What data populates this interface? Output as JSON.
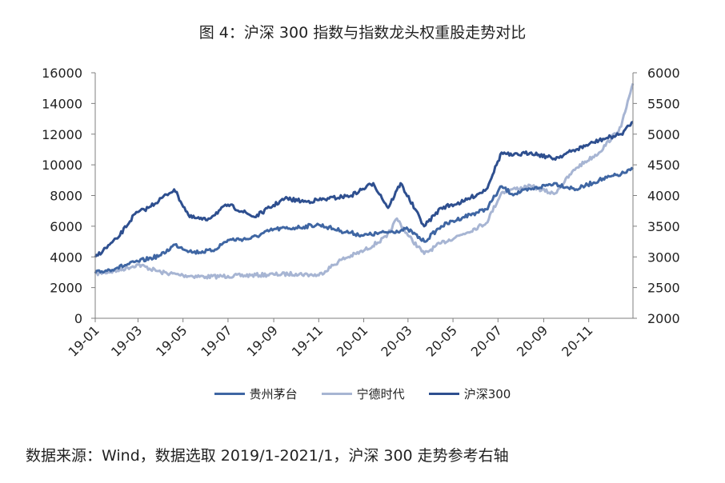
{
  "chart_data": {
    "type": "line",
    "title": "图 4：沪深 300 指数与指数龙头权重股走势对比",
    "left_axis": {
      "ylim": [
        0,
        16000
      ],
      "ticks": [
        "0",
        "2000",
        "4000",
        "6000",
        "8000",
        "10000",
        "12000",
        "14000",
        "16000"
      ]
    },
    "right_axis": {
      "ylim": [
        2000,
        6000
      ],
      "ticks": [
        "2000",
        "2500",
        "3000",
        "3500",
        "4000",
        "4500",
        "5000",
        "5500",
        "6000"
      ]
    },
    "x_ticks": [
      "19-01",
      "19-03",
      "19-05",
      "19-07",
      "19-09",
      "19-11",
      "20-01",
      "20-03",
      "20-05",
      "20-07",
      "20-09",
      "20-11"
    ],
    "series": [
      {
        "name": "贵州茅台",
        "axis": "left",
        "color": "#3f66a3",
        "x": [
          "2019-01-02",
          "2019-02-01",
          "2019-03-01",
          "2019-04-01",
          "2019-04-20",
          "2019-05-15",
          "2019-06-10",
          "2019-07-01",
          "2019-08-01",
          "2019-09-01",
          "2019-10-01",
          "2019-11-01",
          "2019-12-01",
          "2020-01-01",
          "2020-02-01",
          "2020-03-01",
          "2020-03-23",
          "2020-04-15",
          "2020-05-15",
          "2020-06-15",
          "2020-07-06",
          "2020-07-20",
          "2020-08-15",
          "2020-09-15",
          "2020-10-15",
          "2020-11-15",
          "2020-12-15",
          "2020-12-31"
        ],
        "y": [
          2950,
          3300,
          3700,
          4100,
          4800,
          4300,
          4400,
          5100,
          5200,
          5800,
          5900,
          6100,
          5700,
          5400,
          5600,
          5800,
          5000,
          6000,
          6600,
          7100,
          8600,
          8100,
          8400,
          8800,
          8400,
          9000,
          9400,
          9700
        ]
      },
      {
        "name": "宁德时代",
        "axis": "left",
        "color": "#a7b5d3",
        "x": [
          "2019-01-02",
          "2019-02-01",
          "2019-03-01",
          "2019-04-01",
          "2019-05-01",
          "2019-06-01",
          "2019-07-01",
          "2019-08-01",
          "2019-09-01",
          "2019-10-01",
          "2019-11-01",
          "2019-12-01",
          "2020-01-01",
          "2020-02-01",
          "2020-02-15",
          "2020-03-01",
          "2020-03-23",
          "2020-04-15",
          "2020-05-15",
          "2020-06-15",
          "2020-07-06",
          "2020-07-20",
          "2020-08-15",
          "2020-09-15",
          "2020-10-15",
          "2020-11-15",
          "2020-12-15",
          "2020-12-31"
        ],
        "y": [
          2900,
          3100,
          3500,
          3000,
          2800,
          2700,
          2750,
          2800,
          2850,
          2900,
          2800,
          3800,
          4400,
          5300,
          6500,
          5400,
          4200,
          4900,
          5500,
          6200,
          8200,
          8400,
          8600,
          8100,
          9800,
          10800,
          12500,
          15300
        ]
      },
      {
        "name": "沪深300",
        "axis": "right",
        "color": "#2e4f8f",
        "x": [
          "2019-01-02",
          "2019-02-01",
          "2019-02-25",
          "2019-03-15",
          "2019-04-19",
          "2019-05-10",
          "2019-06-01",
          "2019-07-01",
          "2019-08-06",
          "2019-09-16",
          "2019-10-15",
          "2019-11-15",
          "2019-12-15",
          "2020-01-14",
          "2020-02-03",
          "2020-02-20",
          "2020-03-23",
          "2020-04-15",
          "2020-05-15",
          "2020-06-15",
          "2020-07-06",
          "2020-07-20",
          "2020-08-15",
          "2020-09-15",
          "2020-10-15",
          "2020-11-15",
          "2020-12-15",
          "2020-12-31"
        ],
        "y": [
          3000,
          3300,
          3700,
          3800,
          4100,
          3650,
          3600,
          3850,
          3650,
          3950,
          3900,
          3950,
          4000,
          4200,
          3800,
          4200,
          3500,
          3800,
          3900,
          4100,
          4700,
          4650,
          4700,
          4600,
          4750,
          4900,
          5000,
          5200
        ]
      }
    ]
  },
  "legend": [
    {
      "label": "贵州茅台",
      "color": "#3f66a3"
    },
    {
      "label": "宁德时代",
      "color": "#a7b5d3"
    },
    {
      "label": "沪深300",
      "color": "#2e4f8f"
    }
  ],
  "source_note": "数据来源：Wind，数据选取 2019/1-2021/1，沪深 300 走势参考右轴"
}
